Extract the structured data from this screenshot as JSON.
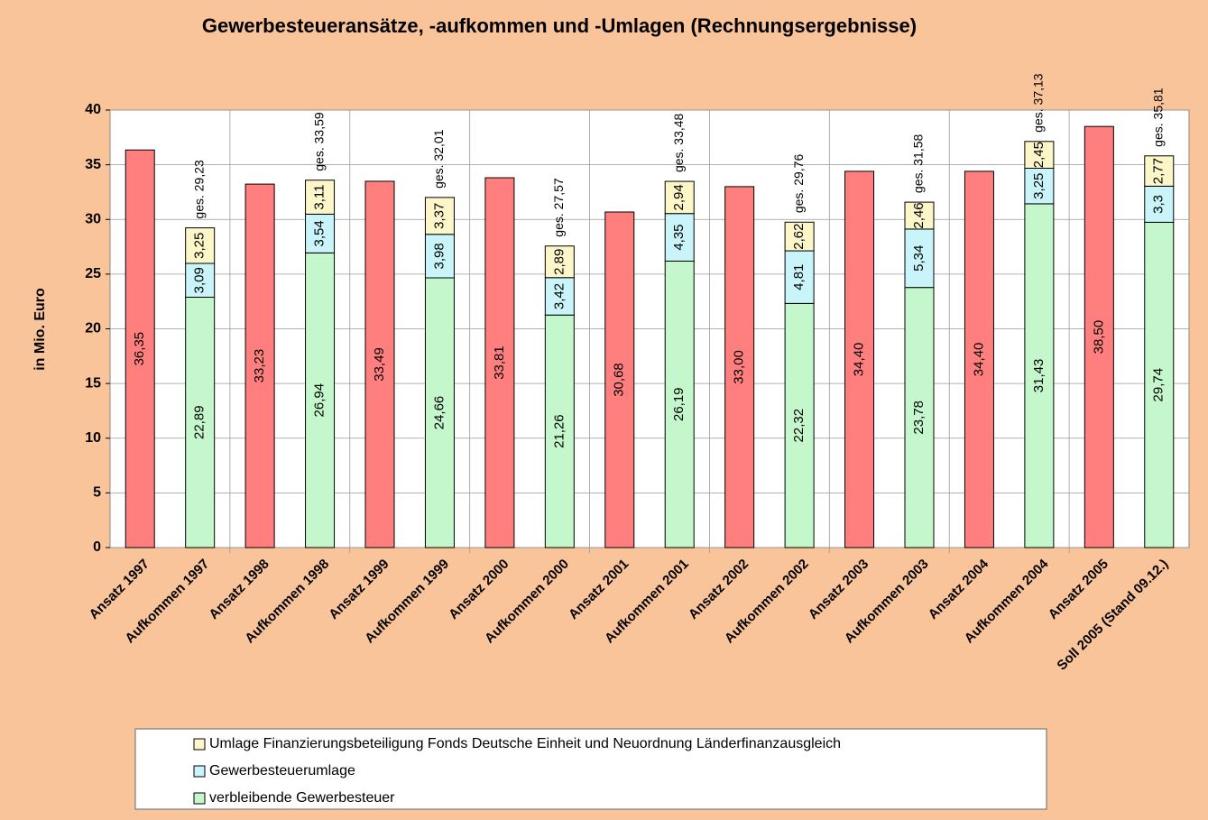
{
  "chart_data": {
    "type": "stacked_bar",
    "title": "Gewerbesteueransätze, -aufkommen und -Umlagen (Rechnungsergebnisse)",
    "y_label": "in Mio. Euro",
    "categories": [
      "Ansatz 1997",
      "Aufkommen 1997",
      "Ansatz 1998",
      "Aufkommen 1998",
      "Ansatz 1999",
      "Aufkommen 1999",
      "Ansatz 2000",
      "Aufkommen 2000",
      "Ansatz 2001",
      "Aufkommen 2001",
      "Ansatz 2002",
      "Aufkommen 2002",
      "Ansatz 2003",
      "Aufkommen 2003",
      "Ansatz 2004",
      "Aufkommen 2004",
      "Ansatz 2005",
      "Soll 2005 (Stand 09.12.)"
    ],
    "series": [
      {
        "color": "#ff7f7f",
        "values": [
          36.35,
          null,
          33.23,
          null,
          33.49,
          null,
          33.81,
          null,
          30.68,
          null,
          33.0,
          null,
          34.4,
          null,
          34.4,
          null,
          38.5,
          null
        ],
        "value_labels": [
          "36,35",
          null,
          "33,23",
          null,
          "33,49",
          null,
          "33,81",
          null,
          "30,68",
          null,
          "33,00",
          null,
          "34,40",
          null,
          "34,40",
          null,
          "38,50",
          null
        ]
      },
      {
        "name": "verbleibende Gewerbesteuer",
        "color": "#c4f7cb",
        "values": [
          null,
          22.89,
          null,
          26.94,
          null,
          24.66,
          null,
          21.26,
          null,
          26.19,
          null,
          22.32,
          null,
          23.78,
          null,
          31.43,
          null,
          29.74
        ],
        "value_labels": [
          null,
          "22,89",
          null,
          "26,94",
          null,
          "24,66",
          null,
          "21,26",
          null,
          "26,19",
          null,
          "22,32",
          null,
          "23,78",
          null,
          "31,43",
          null,
          "29,74"
        ]
      },
      {
        "name": "Gewerbesteuerumlage",
        "color": "#c8f4fa",
        "values": [
          null,
          3.09,
          null,
          3.54,
          null,
          3.98,
          null,
          3.42,
          null,
          4.35,
          null,
          4.81,
          null,
          5.34,
          null,
          3.25,
          null,
          3.3
        ],
        "value_labels": [
          null,
          "3,09",
          null,
          "3,54",
          null,
          "3,98",
          null,
          "3,42",
          null,
          "4,35",
          null,
          "4,81",
          null,
          "5,34",
          null,
          "3,25",
          null,
          "3,3"
        ]
      },
      {
        "name": "Umlage Finanzierungsbeteiligung Fonds Deutsche Einheit und Neuordnung Länderfinanzausgleich",
        "color": "#fcf6c8",
        "values": [
          null,
          3.25,
          null,
          3.11,
          null,
          3.37,
          null,
          2.89,
          null,
          2.94,
          null,
          2.62,
          null,
          2.46,
          null,
          2.45,
          null,
          2.77
        ],
        "value_labels": [
          null,
          "3,25",
          null,
          "3,11",
          null,
          "3,37",
          null,
          "2,89",
          null,
          "2,94",
          null,
          "2,62",
          null,
          "2,46",
          null,
          "2,45",
          null,
          "2,77"
        ]
      }
    ],
    "totals": [
      null,
      29.23,
      null,
      33.59,
      null,
      32.01,
      null,
      27.57,
      null,
      33.48,
      null,
      29.76,
      null,
      31.58,
      null,
      37.13,
      null,
      35.81
    ],
    "total_labels": [
      null,
      "ges. 29,23",
      null,
      "ges. 33,59",
      null,
      "ges. 32,01",
      null,
      "ges. 27,57",
      null,
      "ges. 33,48",
      null,
      "ges. 29,76",
      null,
      "ges. 31,58",
      null,
      "ges. 37,13",
      null,
      "ges. 35,81"
    ],
    "ylim": [
      0,
      40
    ],
    "yticks": [
      0,
      5,
      10,
      15,
      20,
      25,
      30,
      35,
      40
    ],
    "grid": true
  }
}
